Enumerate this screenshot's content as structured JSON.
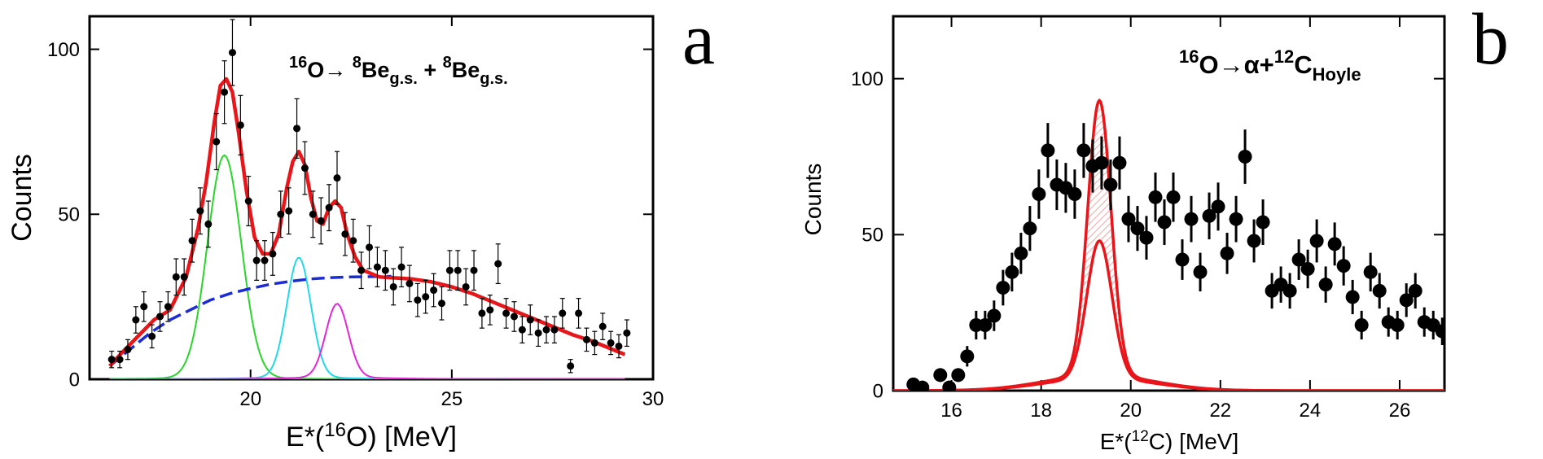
{
  "chart_data": [
    {
      "panel": "a",
      "type": "scatter",
      "xlabel_prefix": "E*(",
      "xlabel_sup": "16",
      "xlabel_suffix": "O) [MeV]",
      "ylabel": "Counts",
      "xlim": [
        16,
        30
      ],
      "ylim": [
        0,
        110
      ],
      "xticks": [
        20,
        25,
        30
      ],
      "yticks": [
        0,
        50,
        100
      ],
      "annotation": {
        "sup1": "16",
        "t1": "O→ ",
        "sup2": "8",
        "t2": "Be",
        "sub2": "g.s.",
        "t3": " + ",
        "sup3": "8",
        "t4": "Be",
        "sub3": "g.s."
      },
      "colors": {
        "data": "#000000",
        "total_fit": "#e8161b",
        "background": "#1b2bd6",
        "peak1": "#2bd52b",
        "peak2": "#23d8e6",
        "peak3": "#e028d6",
        "baseline": "#b31ab3"
      },
      "points": [
        {
          "x": 16.55,
          "y": 6,
          "err": 2.5
        },
        {
          "x": 16.75,
          "y": 6,
          "err": 2.5
        },
        {
          "x": 16.95,
          "y": 9,
          "err": 3
        },
        {
          "x": 17.15,
          "y": 18,
          "err": 4
        },
        {
          "x": 17.35,
          "y": 22,
          "err": 4.5
        },
        {
          "x": 17.55,
          "y": 13,
          "err": 3.5
        },
        {
          "x": 17.75,
          "y": 19,
          "err": 4.5
        },
        {
          "x": 17.95,
          "y": 22,
          "err": 4.5
        },
        {
          "x": 18.15,
          "y": 31,
          "err": 5.5
        },
        {
          "x": 18.35,
          "y": 31,
          "err": 5.5
        },
        {
          "x": 18.55,
          "y": 42,
          "err": 6.5
        },
        {
          "x": 18.75,
          "y": 51,
          "err": 7
        },
        {
          "x": 18.95,
          "y": 47,
          "err": 7
        },
        {
          "x": 19.15,
          "y": 72,
          "err": 8.5
        },
        {
          "x": 19.35,
          "y": 87,
          "err": 9.5
        },
        {
          "x": 19.55,
          "y": 99,
          "err": 10
        },
        {
          "x": 19.75,
          "y": 77,
          "err": 9
        },
        {
          "x": 19.95,
          "y": 54,
          "err": 7.5
        },
        {
          "x": 20.15,
          "y": 36,
          "err": 6
        },
        {
          "x": 20.35,
          "y": 36,
          "err": 6
        },
        {
          "x": 20.55,
          "y": 38,
          "err": 6.5
        },
        {
          "x": 20.75,
          "y": 50,
          "err": 7
        },
        {
          "x": 20.95,
          "y": 51,
          "err": 7
        },
        {
          "x": 21.15,
          "y": 76,
          "err": 9
        },
        {
          "x": 21.35,
          "y": 64,
          "err": 8
        },
        {
          "x": 21.55,
          "y": 50,
          "err": 7
        },
        {
          "x": 21.75,
          "y": 48,
          "err": 7
        },
        {
          "x": 21.95,
          "y": 52,
          "err": 7
        },
        {
          "x": 22.15,
          "y": 61,
          "err": 8
        },
        {
          "x": 22.35,
          "y": 44,
          "err": 6.5
        },
        {
          "x": 22.55,
          "y": 42,
          "err": 6.5
        },
        {
          "x": 22.75,
          "y": 33,
          "err": 5.5
        },
        {
          "x": 22.95,
          "y": 40,
          "err": 6.5
        },
        {
          "x": 23.15,
          "y": 34,
          "err": 6
        },
        {
          "x": 23.35,
          "y": 33,
          "err": 6
        },
        {
          "x": 23.55,
          "y": 28,
          "err": 5.5
        },
        {
          "x": 23.75,
          "y": 34,
          "err": 6
        },
        {
          "x": 23.95,
          "y": 29,
          "err": 5.5
        },
        {
          "x": 24.15,
          "y": 24,
          "err": 5
        },
        {
          "x": 24.35,
          "y": 25,
          "err": 5
        },
        {
          "x": 24.55,
          "y": 27,
          "err": 5
        },
        {
          "x": 24.75,
          "y": 23,
          "err": 5
        },
        {
          "x": 24.95,
          "y": 33,
          "err": 6
        },
        {
          "x": 25.15,
          "y": 33,
          "err": 6
        },
        {
          "x": 25.35,
          "y": 28,
          "err": 5.5
        },
        {
          "x": 25.55,
          "y": 33,
          "err": 6
        },
        {
          "x": 25.75,
          "y": 20,
          "err": 4.5
        },
        {
          "x": 25.95,
          "y": 21,
          "err": 4.5
        },
        {
          "x": 26.15,
          "y": 35,
          "err": 6
        },
        {
          "x": 26.35,
          "y": 20,
          "err": 4.5
        },
        {
          "x": 26.55,
          "y": 19,
          "err": 4.5
        },
        {
          "x": 26.75,
          "y": 15,
          "err": 4
        },
        {
          "x": 26.95,
          "y": 18,
          "err": 4.5
        },
        {
          "x": 27.15,
          "y": 14,
          "err": 4
        },
        {
          "x": 27.35,
          "y": 15,
          "err": 4
        },
        {
          "x": 27.55,
          "y": 15,
          "err": 4
        },
        {
          "x": 27.75,
          "y": 20,
          "err": 4.5
        },
        {
          "x": 27.95,
          "y": 4,
          "err": 2
        },
        {
          "x": 28.15,
          "y": 20,
          "err": 4.5
        },
        {
          "x": 28.35,
          "y": 12,
          "err": 3.5
        },
        {
          "x": 28.55,
          "y": 11,
          "err": 3.5
        },
        {
          "x": 28.75,
          "y": 16,
          "err": 4
        },
        {
          "x": 28.95,
          "y": 11,
          "err": 3.5
        },
        {
          "x": 29.15,
          "y": 10,
          "err": 3.5
        },
        {
          "x": 29.35,
          "y": 14,
          "err": 4
        }
      ],
      "series": [
        {
          "name": "background",
          "style": "dashed",
          "x": [
            16.5,
            17.0,
            17.5,
            18.0,
            18.5,
            19.0,
            19.5,
            20.0,
            20.5,
            21.0,
            21.5,
            22.0,
            22.5,
            23.0,
            23.5
          ],
          "y": [
            4,
            9,
            14,
            18,
            21,
            24,
            26,
            27.5,
            28.8,
            29.7,
            30.4,
            30.8,
            31,
            31.1,
            31.2
          ]
        },
        {
          "name": "peak1",
          "center": 19.35,
          "sigma": 0.42,
          "amp": 67
        },
        {
          "name": "peak2",
          "center": 21.2,
          "sigma": 0.3,
          "amp": 36
        },
        {
          "name": "peak3",
          "center": 22.15,
          "sigma": 0.28,
          "amp": 22
        },
        {
          "name": "baseline",
          "x": [
            16.5,
            29.3
          ],
          "y": [
            0,
            0
          ]
        },
        {
          "name": "total_fit",
          "x": [
            16.5,
            16.8,
            17.2,
            17.6,
            18.0,
            18.4,
            18.7,
            18.9,
            19.1,
            19.25,
            19.4,
            19.55,
            19.7,
            19.9,
            20.1,
            20.3,
            20.5,
            20.7,
            20.9,
            21.05,
            21.2,
            21.35,
            21.5,
            21.65,
            21.8,
            21.95,
            22.1,
            22.25,
            22.4,
            22.6,
            22.8,
            23.2,
            23.6,
            24.0,
            24.5,
            25.0,
            25.5,
            26.0,
            26.5,
            27.0,
            27.5,
            28.0,
            28.5,
            29.0,
            29.3
          ],
          "y": [
            4,
            8,
            13,
            18,
            21,
            31,
            46,
            60,
            78,
            89,
            91,
            87,
            75,
            57,
            43,
            38,
            38,
            44,
            58,
            66,
            69,
            65,
            55,
            48,
            47,
            52,
            54,
            52,
            44,
            37,
            33,
            31,
            30.7,
            30.4,
            29.5,
            28,
            26,
            23.5,
            21,
            18.5,
            16,
            13.5,
            11.5,
            9,
            7.5
          ]
        }
      ]
    },
    {
      "panel": "b",
      "type": "scatter",
      "xlabel_prefix": "E*(",
      "xlabel_sup": "12",
      "xlabel_suffix": "C) [MeV]",
      "ylabel": "Counts",
      "xlim": [
        14.7,
        27
      ],
      "ylim": [
        0,
        120
      ],
      "xticks": [
        16,
        18,
        20,
        22,
        24,
        26
      ],
      "yticks": [
        0,
        50,
        100
      ],
      "annotation": {
        "sup1": "16",
        "t1": "O→α+",
        "sup2": "12",
        "t2": "C",
        "sub2": "Hoyle"
      },
      "colors": {
        "data": "#000000",
        "curve": "#e8161b",
        "hatch": "#f08c8c"
      },
      "points": [
        {
          "x": 15.15,
          "y": 2,
          "err": 1.5
        },
        {
          "x": 15.35,
          "y": 1,
          "err": 1.5
        },
        {
          "x": 15.75,
          "y": 5,
          "err": 2.2
        },
        {
          "x": 15.95,
          "y": 1,
          "err": 1.5
        },
        {
          "x": 16.15,
          "y": 5,
          "err": 2.2
        },
        {
          "x": 16.35,
          "y": 11,
          "err": 3.3
        },
        {
          "x": 16.55,
          "y": 21,
          "err": 4.6
        },
        {
          "x": 16.75,
          "y": 21,
          "err": 4.6
        },
        {
          "x": 16.95,
          "y": 24,
          "err": 4.9
        },
        {
          "x": 17.15,
          "y": 33,
          "err": 5.7
        },
        {
          "x": 17.35,
          "y": 38,
          "err": 6.2
        },
        {
          "x": 17.55,
          "y": 44,
          "err": 6.6
        },
        {
          "x": 17.75,
          "y": 52,
          "err": 7.2
        },
        {
          "x": 17.95,
          "y": 63,
          "err": 7.9
        },
        {
          "x": 18.15,
          "y": 77,
          "err": 8.8
        },
        {
          "x": 18.35,
          "y": 66,
          "err": 8.1
        },
        {
          "x": 18.55,
          "y": 65,
          "err": 8
        },
        {
          "x": 18.75,
          "y": 63,
          "err": 7.9
        },
        {
          "x": 18.95,
          "y": 77,
          "err": 8.8
        },
        {
          "x": 19.15,
          "y": 72,
          "err": 8.5
        },
        {
          "x": 19.35,
          "y": 73,
          "err": 8.5
        },
        {
          "x": 19.55,
          "y": 66,
          "err": 8.1
        },
        {
          "x": 19.75,
          "y": 73,
          "err": 8.5
        },
        {
          "x": 19.95,
          "y": 55,
          "err": 7.4
        },
        {
          "x": 20.15,
          "y": 52,
          "err": 7.2
        },
        {
          "x": 20.35,
          "y": 49,
          "err": 7
        },
        {
          "x": 20.55,
          "y": 62,
          "err": 7.9
        },
        {
          "x": 20.75,
          "y": 54,
          "err": 7.3
        },
        {
          "x": 20.95,
          "y": 62,
          "err": 7.9
        },
        {
          "x": 21.15,
          "y": 42,
          "err": 6.5
        },
        {
          "x": 21.35,
          "y": 55,
          "err": 7.4
        },
        {
          "x": 21.55,
          "y": 38,
          "err": 6.2
        },
        {
          "x": 21.75,
          "y": 56,
          "err": 7.5
        },
        {
          "x": 21.95,
          "y": 59,
          "err": 7.7
        },
        {
          "x": 22.15,
          "y": 44,
          "err": 6.6
        },
        {
          "x": 22.35,
          "y": 55,
          "err": 7.4
        },
        {
          "x": 22.55,
          "y": 75,
          "err": 8.7
        },
        {
          "x": 22.75,
          "y": 48,
          "err": 6.9
        },
        {
          "x": 22.95,
          "y": 54,
          "err": 7.3
        },
        {
          "x": 23.15,
          "y": 32,
          "err": 5.7
        },
        {
          "x": 23.35,
          "y": 34,
          "err": 5.8
        },
        {
          "x": 23.55,
          "y": 32,
          "err": 5.7
        },
        {
          "x": 23.75,
          "y": 42,
          "err": 6.5
        },
        {
          "x": 23.95,
          "y": 39,
          "err": 6.2
        },
        {
          "x": 24.15,
          "y": 48,
          "err": 6.9
        },
        {
          "x": 24.35,
          "y": 34,
          "err": 5.8
        },
        {
          "x": 24.55,
          "y": 47,
          "err": 6.9
        },
        {
          "x": 24.75,
          "y": 40,
          "err": 6.3
        },
        {
          "x": 24.95,
          "y": 30,
          "err": 5.5
        },
        {
          "x": 25.15,
          "y": 21,
          "err": 4.6
        },
        {
          "x": 25.35,
          "y": 38,
          "err": 6.2
        },
        {
          "x": 25.55,
          "y": 32,
          "err": 5.7
        },
        {
          "x": 25.75,
          "y": 22,
          "err": 4.7
        },
        {
          "x": 25.95,
          "y": 21,
          "err": 4.6
        },
        {
          "x": 26.15,
          "y": 29,
          "err": 5.4
        },
        {
          "x": 26.35,
          "y": 32,
          "err": 5.7
        },
        {
          "x": 26.55,
          "y": 22,
          "err": 4.7
        },
        {
          "x": 26.75,
          "y": 21,
          "err": 4.6
        },
        {
          "x": 26.95,
          "y": 19,
          "err": 4.4
        }
      ],
      "series": [
        {
          "name": "upper",
          "center": 19.3,
          "sigma": 0.26,
          "amp": 88,
          "tail_amp": 5,
          "tail_sigma": 1.2
        },
        {
          "name": "lower",
          "center": 19.3,
          "sigma": 0.28,
          "amp": 44,
          "tail_amp": 4,
          "tail_sigma": 1.2
        }
      ]
    }
  ],
  "panel_letters": [
    "a",
    "b"
  ]
}
